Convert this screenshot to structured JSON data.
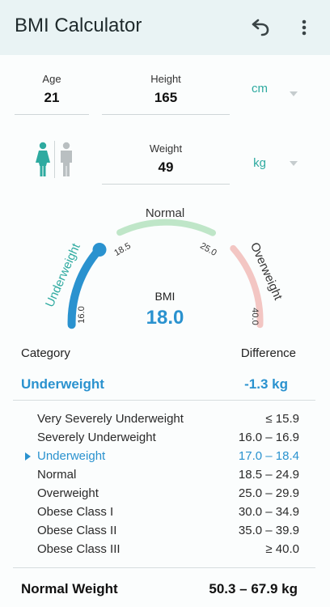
{
  "app": {
    "title": "BMI Calculator"
  },
  "toolbar": {
    "undo_icon": "undo-icon",
    "more_icon": "more-vert-icon"
  },
  "inputs": {
    "age": {
      "label": "Age",
      "value": "21"
    },
    "height": {
      "label": "Height",
      "value": "165",
      "unit": "cm"
    },
    "weight": {
      "label": "Weight",
      "value": "49",
      "unit": "kg"
    },
    "gender": {
      "selected": "female",
      "female_icon": "female-icon",
      "male_icon": "male-icon"
    }
  },
  "gauge": {
    "segments": {
      "underweight": {
        "label": "Underweight",
        "color": "#2a92cf"
      },
      "normal": {
        "label": "Normal",
        "color": "#bfe6c8"
      },
      "overweight": {
        "label": "Overweight",
        "color": "#f3c6c3"
      }
    },
    "ticks": {
      "t16": "16.0",
      "t185": "18.5",
      "t25": "25.0",
      "t40": "40.0"
    },
    "bmi_label": "BMI",
    "bmi_value": "18.0"
  },
  "table": {
    "header_category": "Category",
    "header_difference": "Difference",
    "current_category": "Underweight",
    "current_difference": "-1.3 kg",
    "rows": [
      {
        "name": "Very Severely Underweight",
        "range": "≤ 15.9"
      },
      {
        "name": "Severely Underweight",
        "range": "16.0 – 16.9"
      },
      {
        "name": "Underweight",
        "range": "17.0 – 18.4"
      },
      {
        "name": "Normal",
        "range": "18.5 – 24.9"
      },
      {
        "name": "Overweight",
        "range": "25.0 – 29.9"
      },
      {
        "name": "Obese Class I",
        "range": "30.0 – 34.9"
      },
      {
        "name": "Obese Class II",
        "range": "35.0 – 39.9"
      },
      {
        "name": "Obese Class III",
        "range": "≥ 40.0"
      }
    ]
  },
  "normal_weight": {
    "label": "Normal Weight",
    "value": "50.3 – 67.9 kg"
  },
  "colors": {
    "accent": "#2a92cf",
    "teal": "#2eaaa0",
    "normal": "#bfe6c8",
    "overweight": "#f3c6c3"
  }
}
